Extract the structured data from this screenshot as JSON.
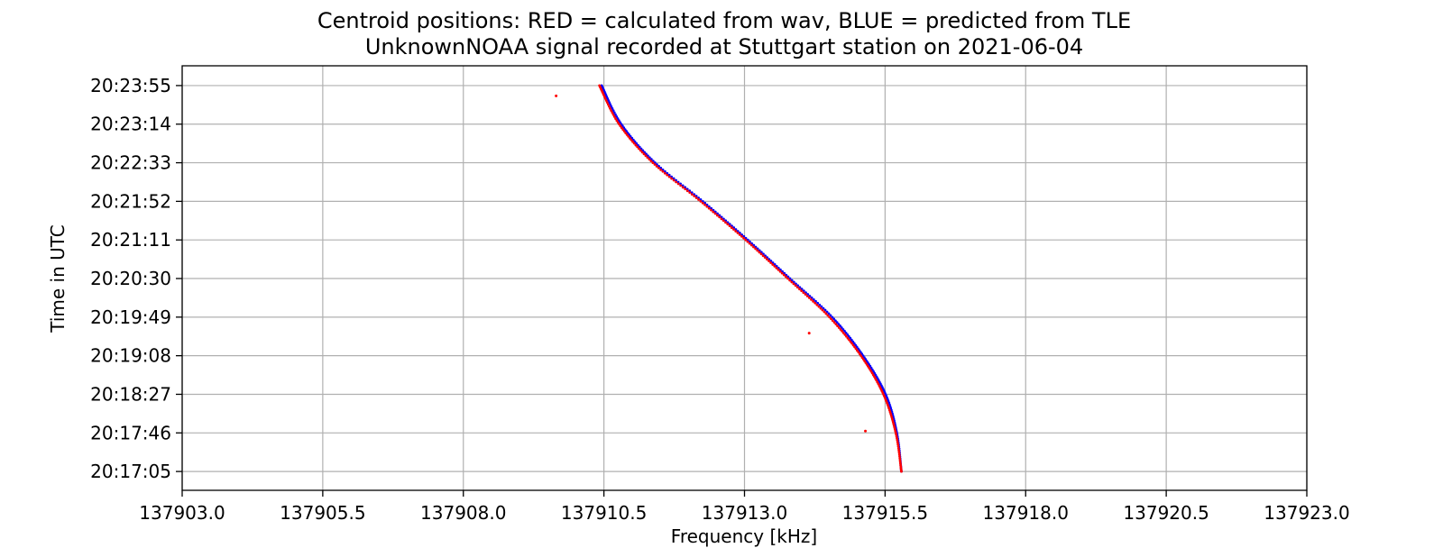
{
  "chart_data": {
    "type": "scatter",
    "title": "Centroid positions: RED = calculated from wav, BLUE = predicted from TLE",
    "subtitle": "UnknownNOAA signal recorded at Stuttgart station on 2021-06-04",
    "xlabel": "Frequency [kHz]",
    "ylabel": "Time in UTC",
    "xlim": [
      137903.0,
      137923.0
    ],
    "ylim": [
      "20:16:45",
      "20:24:16"
    ],
    "x_ticks": [
      137903.0,
      137905.5,
      137908.0,
      137910.5,
      137913.0,
      137915.5,
      137918.0,
      137920.5,
      137923.0
    ],
    "x_tick_labels": [
      "137903.0",
      "137905.5",
      "137908.0",
      "137910.5",
      "137913.0",
      "137915.5",
      "137918.0",
      "137920.5",
      "137923.0"
    ],
    "y_tick_labels": [
      "20:17:05",
      "20:17:46",
      "20:18:27",
      "20:19:08",
      "20:19:49",
      "20:20:30",
      "20:21:11",
      "20:21:52",
      "20:22:33",
      "20:23:14",
      "20:23:55"
    ],
    "grid": true,
    "legend": "none (colors described in title)",
    "series": [
      {
        "name": "BLUE = predicted from TLE",
        "color": "#0000ff",
        "points": [
          {
            "x": 137915.78,
            "y": "20:17:05"
          },
          {
            "x": 137915.7,
            "y": "20:17:46"
          },
          {
            "x": 137915.5,
            "y": "20:18:27"
          },
          {
            "x": 137915.1,
            "y": "20:19:08"
          },
          {
            "x": 137914.55,
            "y": "20:19:49"
          },
          {
            "x": 137913.8,
            "y": "20:20:30"
          },
          {
            "x": 137913.05,
            "y": "20:21:11"
          },
          {
            "x": 137912.25,
            "y": "20:21:52"
          },
          {
            "x": 137911.4,
            "y": "20:22:33"
          },
          {
            "x": 137910.8,
            "y": "20:23:14"
          },
          {
            "x": 137910.45,
            "y": "20:23:55"
          }
        ]
      },
      {
        "name": "RED = calculated from wav",
        "color": "#ff0000",
        "points": [
          {
            "x": 137915.8,
            "y": "20:17:05"
          },
          {
            "x": 137915.7,
            "y": "20:17:46"
          },
          {
            "x": 137915.48,
            "y": "20:18:27"
          },
          {
            "x": 137915.08,
            "y": "20:19:08"
          },
          {
            "x": 137914.52,
            "y": "20:19:49"
          },
          {
            "x": 137913.78,
            "y": "20:20:30"
          },
          {
            "x": 137913.03,
            "y": "20:21:11"
          },
          {
            "x": 137912.23,
            "y": "20:21:52"
          },
          {
            "x": 137911.38,
            "y": "20:22:33"
          },
          {
            "x": 137910.78,
            "y": "20:23:14"
          },
          {
            "x": 137910.43,
            "y": "20:23:55"
          },
          {
            "x": 137915.15,
            "y": "20:17:46"
          }
        ],
        "outliers": [
          {
            "x": 137909.65,
            "y": "20:23:44"
          },
          {
            "x": 137914.15,
            "y": "20:19:32"
          },
          {
            "x": 137915.15,
            "y": "20:17:48"
          }
        ]
      }
    ]
  }
}
